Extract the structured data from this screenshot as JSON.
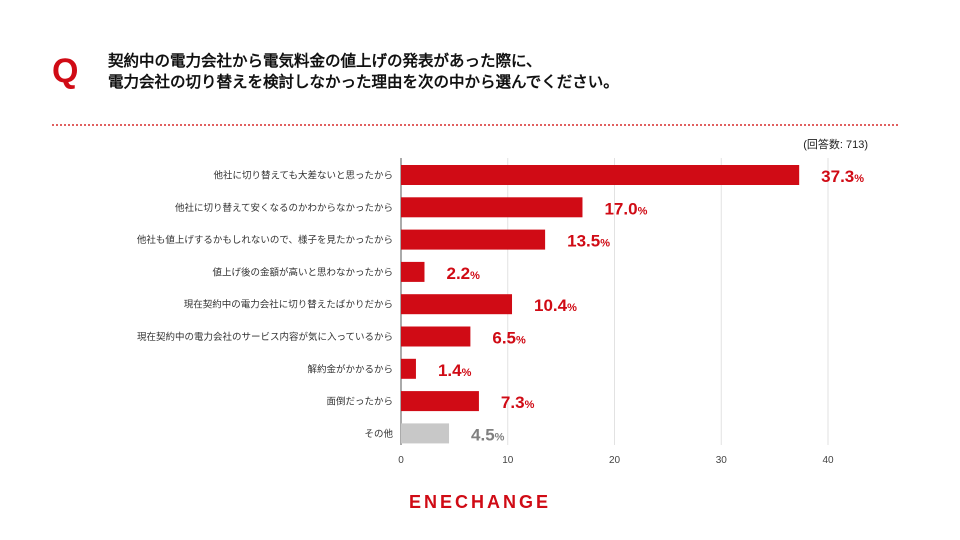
{
  "header": {
    "q_mark": "Q",
    "question_line1": "契約中の電力会社から電気料金の値上げの発表があった際に、",
    "question_line2": "電力会社の切り替えを検討しなかった理由を次の中から選んでください。"
  },
  "respondents": "(回答数: 713)",
  "brand": "ENECHANGE",
  "colors": {
    "accent": "#d00b15",
    "other_bar": "#c8c8c8",
    "other_text": "#808080"
  },
  "chart_data": {
    "type": "bar",
    "orientation": "horizontal",
    "title": "",
    "categories": [
      "他社に切り替えても大差ないと思ったから",
      "他社に切り替えて安くなるのかわからなかったから",
      "他社も値上げするかもしれないので、様子を見たかったから",
      "値上げ後の金額が高いと思わなかったから",
      "現在契約中の電力会社に切り替えたばかりだから",
      "現在契約中の電力会社のサービス内容が気に入っているから",
      "解約金がかかるから",
      "面倒だったから",
      "その他"
    ],
    "values": [
      37.3,
      17.0,
      13.5,
      2.2,
      10.4,
      6.5,
      1.4,
      7.3,
      4.5
    ],
    "value_labels": [
      "37.3",
      "17.0",
      "13.5",
      "2.2",
      "10.4",
      "6.5",
      "1.4",
      "7.3",
      "4.5"
    ],
    "unit": "%",
    "xlim": [
      0,
      40
    ],
    "xticks": [
      0,
      10,
      20,
      30,
      40
    ],
    "xlabel": "",
    "ylabel": "",
    "grid": true,
    "gray_category": "その他"
  }
}
